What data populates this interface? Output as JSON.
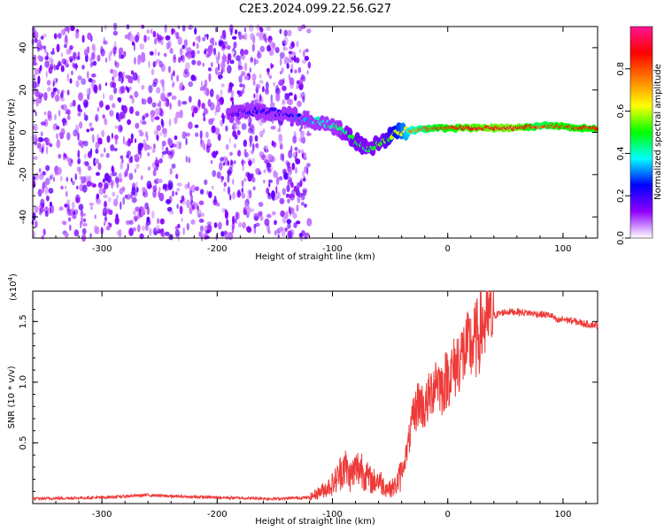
{
  "title": "C2E3.2024.099.22.56.G27",
  "colors": {
    "snr_line": "#ee3a38",
    "spectro_noise": "#6a00e8",
    "axis": "#000000"
  },
  "chart_data": [
    {
      "type": "heatmap",
      "name": "spectrogram",
      "xlabel": "Height of straight line (km)",
      "ylabel": "Frequency (Hz)",
      "xlim": [
        -360,
        130
      ],
      "ylim": [
        -50,
        50
      ],
      "xticks": [
        -300,
        -200,
        -100,
        0,
        100
      ],
      "yticks": [
        -40,
        -20,
        0,
        20,
        40
      ],
      "colorbar": {
        "label": "Normalized spectral amplitude",
        "range": [
          0,
          1
        ],
        "ticks": [
          "0.0",
          "0.2",
          "0.4",
          "0.6",
          "0.8"
        ],
        "colormap": [
          "#ffffff",
          "#8f00ff",
          "#0000ff",
          "#00ffff",
          "#00ff00",
          "#ffff00",
          "#ff8000",
          "#ff0000",
          "#ff1493"
        ]
      },
      "noise_region": {
        "x": [
          -360,
          -120
        ],
        "y": [
          -50,
          50
        ],
        "amplitude": 0.12
      },
      "signal_track": [
        {
          "x": -190,
          "freq": 8,
          "amp": 0.12
        },
        {
          "x": -175,
          "freq": 10,
          "amp": 0.2
        },
        {
          "x": -160,
          "freq": 10,
          "amp": 0.2
        },
        {
          "x": -140,
          "freq": 9,
          "amp": 0.22
        },
        {
          "x": -125,
          "freq": 6,
          "amp": 0.3
        },
        {
          "x": -110,
          "freq": 5,
          "amp": 0.4
        },
        {
          "x": -95,
          "freq": 2,
          "amp": 0.45
        },
        {
          "x": -80,
          "freq": -4,
          "amp": 0.5
        },
        {
          "x": -70,
          "freq": -8,
          "amp": 0.48
        },
        {
          "x": -55,
          "freq": -4,
          "amp": 0.5
        },
        {
          "x": -45,
          "freq": 0,
          "amp": 0.6
        },
        {
          "x": -30,
          "freq": 1,
          "amp": 0.75
        },
        {
          "x": -15,
          "freq": 2,
          "amp": 0.82
        },
        {
          "x": 0,
          "freq": 2,
          "amp": 0.85
        },
        {
          "x": 20,
          "freq": 2,
          "amp": 0.88
        },
        {
          "x": 40,
          "freq": 2,
          "amp": 0.9
        },
        {
          "x": 60,
          "freq": 2,
          "amp": 0.9
        },
        {
          "x": 80,
          "freq": 3,
          "amp": 0.8
        },
        {
          "x": 95,
          "freq": 3,
          "amp": 0.85
        },
        {
          "x": 110,
          "freq": 2,
          "amp": 0.85
        },
        {
          "x": 130,
          "freq": 2,
          "amp": 0.85
        }
      ]
    },
    {
      "type": "line",
      "name": "snr",
      "xlabel": "Height of straight line (km)",
      "ylabel": "SNR (10 * v/v)",
      "scale_label": "(x10",
      "scale_exp": "4",
      "scale_close": ")",
      "xlim": [
        -360,
        130
      ],
      "ylim": [
        0,
        1.75
      ],
      "xticks": [
        -300,
        -200,
        -100,
        0,
        100
      ],
      "yticks": [
        "0.5",
        "1.0",
        "1.5"
      ],
      "ytick_values": [
        0.5,
        1.0,
        1.5
      ],
      "series": [
        {
          "x": [
            -360,
            -300,
            -260,
            -240,
            -200,
            -150,
            -120,
            -110,
            -100,
            -95,
            -90,
            -85,
            -80,
            -75,
            -70,
            -65,
            -60,
            -55,
            -50,
            -45,
            -40,
            -35,
            -30,
            -25,
            -20,
            -15,
            -10,
            -5,
            0,
            5,
            10,
            15,
            20,
            25,
            30,
            35,
            40,
            50,
            60,
            70,
            80,
            90,
            95,
            100,
            110,
            120,
            130
          ],
          "y": [
            0.04,
            0.05,
            0.07,
            0.06,
            0.05,
            0.04,
            0.05,
            0.1,
            0.16,
            0.22,
            0.32,
            0.22,
            0.28,
            0.3,
            0.22,
            0.18,
            0.2,
            0.14,
            0.12,
            0.15,
            0.25,
            0.45,
            0.7,
            0.85,
            0.78,
            0.9,
            1.05,
            0.95,
            1.05,
            1.1,
            1.2,
            1.25,
            1.3,
            1.35,
            1.48,
            1.52,
            1.55,
            1.58,
            1.58,
            1.57,
            1.56,
            1.55,
            1.5,
            1.52,
            1.5,
            1.48,
            1.47
          ]
        }
      ]
    }
  ]
}
